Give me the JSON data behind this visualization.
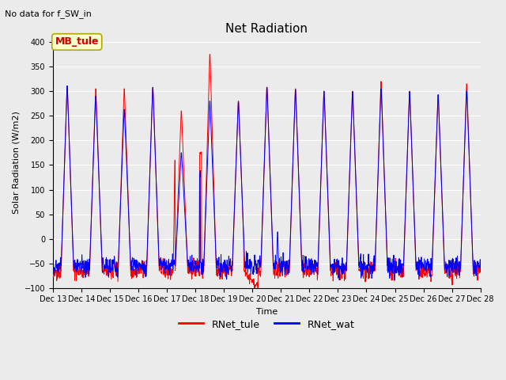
{
  "title": "Net Radiation",
  "suptitle": "No data for f_SW_in",
  "ylabel": "Solar Radiation (W/m2)",
  "xlabel": "Time",
  "ylim": [
    -100,
    410
  ],
  "yticks": [
    -100,
    -50,
    0,
    50,
    100,
    150,
    200,
    250,
    300,
    350,
    400
  ],
  "legend_labels": [
    "RNet_tule",
    "RNet_wat"
  ],
  "legend_colors": [
    "red",
    "blue"
  ],
  "box_label": "MB_tule",
  "box_color": "#cc0000",
  "box_bg": "#ffffcc",
  "box_edge": "#aaaa00",
  "background_color": "#ebebeb",
  "grid_color": "white",
  "n_days": 15,
  "start_day": 13,
  "points_per_day": 96,
  "figsize": [
    6.4,
    4.8
  ],
  "dpi": 100
}
